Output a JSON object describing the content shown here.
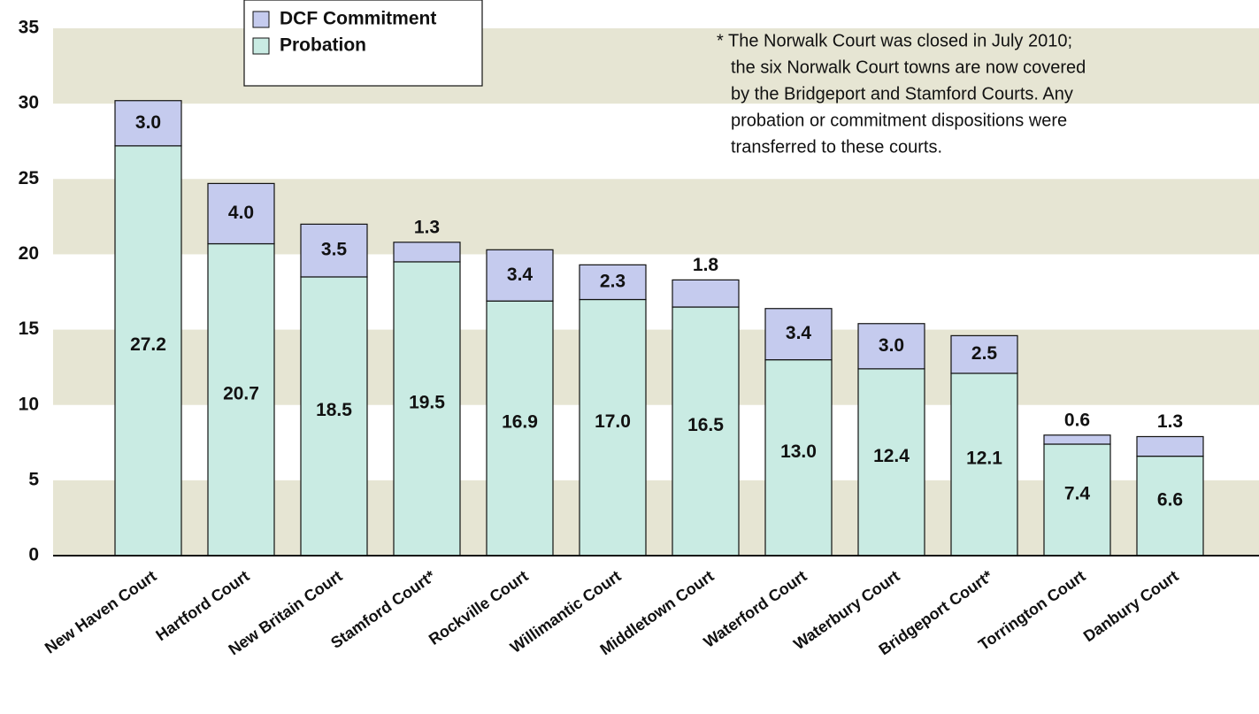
{
  "chart_data": {
    "type": "stacked_bar",
    "categories": [
      "New Haven Court",
      "Hartford Court",
      "New Britain Court",
      "Stamford Court*",
      "Rockville Court",
      "Willimantic Court",
      "Middletown Court",
      "Waterford Court",
      "Waterbury Court",
      "Bridgeport Court*",
      "Torrington Court",
      "Danbury Court"
    ],
    "series": [
      {
        "name": "Probation",
        "color": "#c9ebe3",
        "values": [
          27.2,
          20.7,
          18.5,
          19.5,
          16.9,
          17.0,
          16.5,
          13.0,
          12.4,
          12.1,
          7.4,
          6.6
        ],
        "value_labels": [
          "27.2",
          "20.7",
          "18.5",
          "19.5",
          "16.9",
          "17.0",
          "16.5",
          "13.0",
          "12.4",
          "12.1",
          "7.4",
          "6.6"
        ]
      },
      {
        "name": "DCF Commitment",
        "color": "#c5cbee",
        "values": [
          3.0,
          4.0,
          3.5,
          1.3,
          3.4,
          2.3,
          1.8,
          3.4,
          3.0,
          2.5,
          0.6,
          1.3
        ],
        "value_labels": [
          "3.0",
          "4.0",
          "3.5",
          "1.3",
          "3.4",
          "2.3",
          "1.8",
          "3.4",
          "3.0",
          "2.5",
          "0.6",
          "1.3"
        ]
      }
    ],
    "ylim": [
      0,
      35
    ],
    "yticks": [
      0,
      5,
      10,
      15,
      20,
      25,
      30,
      35
    ],
    "band_color": "#e6e5d3",
    "annotation_lines": [
      "* The Norwalk Court was closed in July 2010;",
      "the six Norwalk Court towns are now covered",
      "by the Bridgeport and Stamford Courts. Any",
      "probation or commitment dispositions were",
      "transferred to these courts."
    ]
  }
}
